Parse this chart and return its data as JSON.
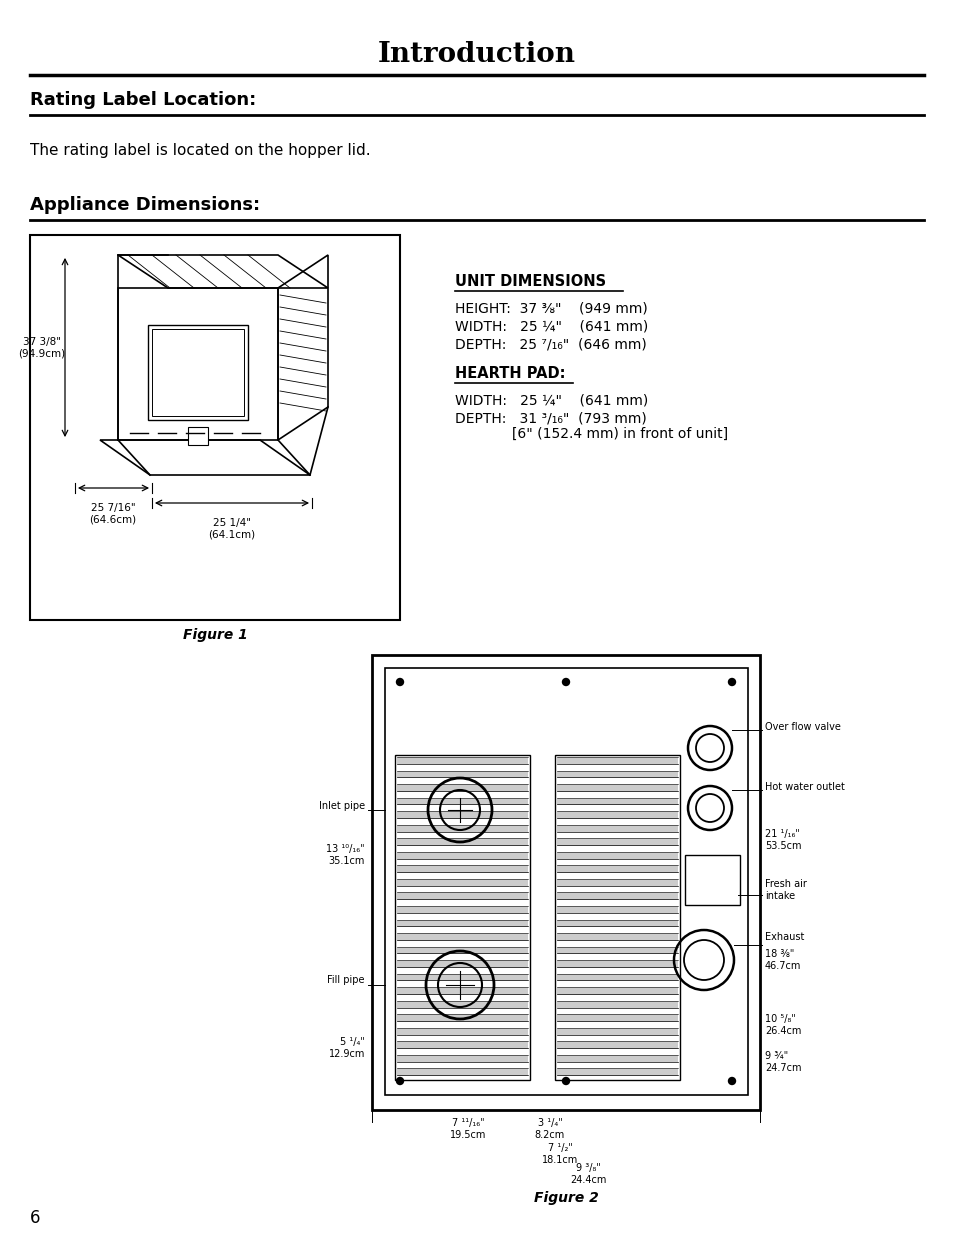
{
  "title": "Introduction",
  "section1_title": "Rating Label Location:",
  "section1_text": "The rating label is located on the hopper lid.",
  "section2_title": "Appliance Dimensions:",
  "unit_dim_title": "UNIT DIMENSIONS",
  "unit_height": "HEIGHT:  37 ⅜\"    (949 mm)",
  "unit_width": "WIDTH:   25 ¼\"    (641 mm)",
  "unit_depth": "DEPTH:   25 ⁷/₁₆\"  (646 mm)",
  "hearth_title": "HEARTH PAD:",
  "hearth_width": "WIDTH:   25 ¼\"    (641 mm)",
  "hearth_depth": "DEPTH:   31 ³/₁₆\"  (793 mm)",
  "hearth_note": "             [6\" (152.4 mm) in front of unit]",
  "fig1_caption": "Figure 1",
  "fig2_caption": "Figure 2",
  "label_37": "37 3/8\"\n(94.9cm)",
  "label_25_7": "25 7/16\"\n(64.6cm)",
  "label_25_1": "25 1/4\"\n(64.1cm)",
  "page_num": "6",
  "bg_color": "#ffffff",
  "text_color": "#000000"
}
